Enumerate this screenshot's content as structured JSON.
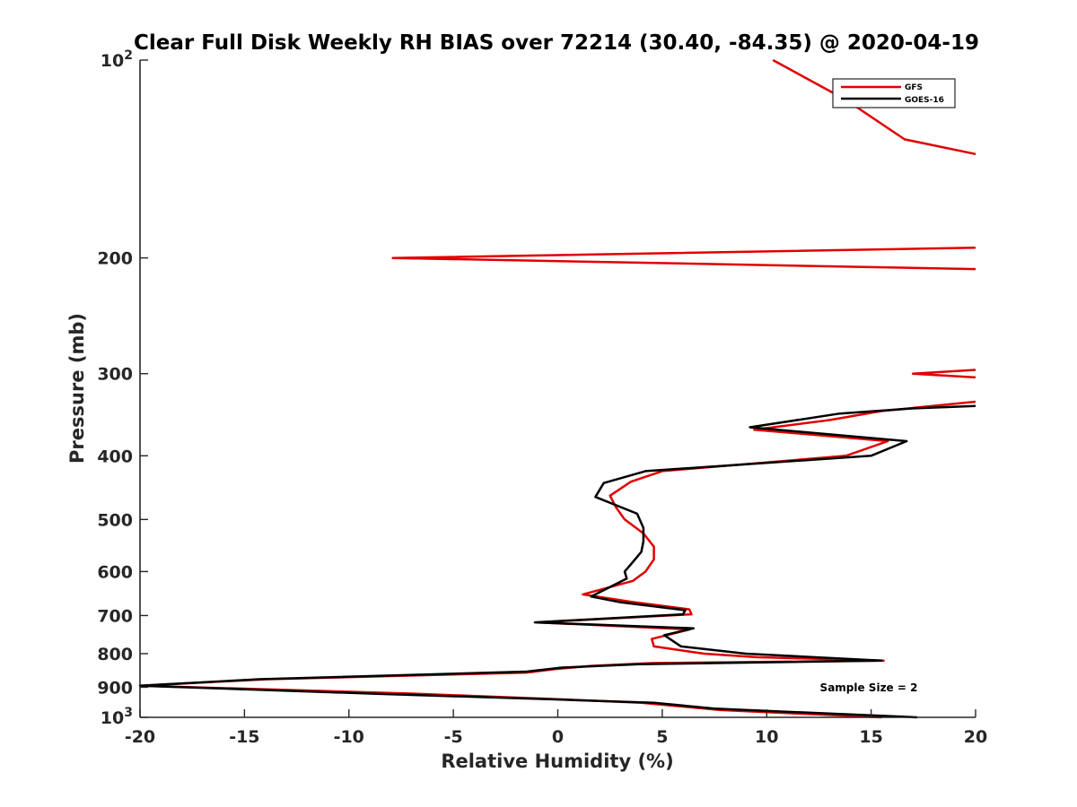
{
  "chart_data": {
    "type": "line",
    "title": "Clear Full Disk Weekly RH BIAS over 72214 (30.40, -84.35) @ 2020-04-19",
    "xlabel": "Relative Humidity (%)",
    "ylabel": "Pressure (mb)",
    "xlim": [
      -20,
      20
    ],
    "ylim": [
      100,
      1000
    ],
    "yscale": "log",
    "y_reversed": true,
    "xticks": [
      -20,
      -15,
      -10,
      -5,
      0,
      5,
      10,
      15,
      20
    ],
    "xtick_labels": [
      "-20",
      "-15",
      "-10",
      "-5",
      "0",
      "5",
      "10",
      "15",
      "20"
    ],
    "yticks": [
      100,
      200,
      300,
      400,
      500,
      600,
      700,
      800,
      900,
      1000
    ],
    "ytick_labels": [
      {
        "base": "10",
        "exp": "2"
      },
      {
        "base": "200"
      },
      {
        "base": "300"
      },
      {
        "base": "400"
      },
      {
        "base": "500"
      },
      {
        "base": "600"
      },
      {
        "base": "700"
      },
      {
        "base": "800"
      },
      {
        "base": "900"
      },
      {
        "base": "10",
        "exp": "3"
      }
    ],
    "legend_position": "top-right",
    "annotation": "Sample Size = 2",
    "series": [
      {
        "name": "GFS",
        "color": "#e00000",
        "segments": [
          [
            [
              10.3,
              100
            ],
            [
              13.8,
              115
            ],
            [
              16.6,
              132
            ],
            [
              20,
              139
            ]
          ],
          [
            [
              20,
              193
            ],
            [
              -7.9,
              200
            ],
            [
              20,
              208
            ]
          ],
          [
            [
              20,
              296
            ],
            [
              17.0,
              300
            ],
            [
              20,
              304
            ]
          ],
          [
            [
              20,
              331
            ],
            [
              15.5,
              342
            ],
            [
              13.0,
              353
            ],
            [
              9.4,
              365
            ],
            [
              15.8,
              380
            ],
            [
              13.8,
              400
            ],
            [
              5.0,
              422
            ],
            [
              3.5,
              438
            ],
            [
              2.5,
              460
            ],
            [
              2.8,
              480
            ],
            [
              3.2,
              500
            ],
            [
              4.1,
              525
            ],
            [
              4.6,
              550
            ],
            [
              4.6,
              575
            ],
            [
              4.2,
              600
            ],
            [
              3.6,
              620
            ],
            [
              1.2,
              650
            ],
            [
              3.5,
              667
            ],
            [
              6.3,
              685
            ],
            [
              6.4,
              697
            ],
            [
              -1.0,
              717
            ],
            [
              6.3,
              735
            ],
            [
              4.5,
              760
            ],
            [
              4.6,
              780
            ],
            [
              7.0,
              800
            ],
            [
              9.5,
              810
            ],
            [
              15.6,
              820
            ],
            [
              4.5,
              827
            ],
            [
              1.6,
              835
            ],
            [
              -0.2,
              845
            ],
            [
              -1.5,
              855
            ],
            [
              -13.9,
              875
            ],
            [
              -20,
              895
            ],
            [
              -7.0,
              920
            ],
            [
              0.5,
              940
            ],
            [
              4.0,
              950
            ],
            [
              7.8,
              975
            ],
            [
              15.5,
              1000
            ]
          ]
        ]
      },
      {
        "name": "GOES-16",
        "color": "#000000",
        "segments": [
          [
            [
              20,
              336
            ],
            [
              16.9,
              339
            ],
            [
              13.5,
              345
            ],
            [
              9.2,
              362
            ],
            [
              16.7,
              380
            ],
            [
              15.0,
              400
            ],
            [
              4.2,
              422
            ],
            [
              2.2,
              440
            ],
            [
              1.8,
              462
            ],
            [
              3.8,
              490
            ],
            [
              4.1,
              515
            ],
            [
              4.1,
              540
            ],
            [
              4.0,
              560
            ],
            [
              3.5,
              585
            ],
            [
              3.2,
              600
            ],
            [
              3.3,
              615
            ],
            [
              1.6,
              655
            ],
            [
              3.0,
              668
            ],
            [
              6.1,
              687
            ],
            [
              6.0,
              697
            ],
            [
              -1.1,
              717
            ],
            [
              6.5,
              732
            ],
            [
              5.1,
              750
            ],
            [
              5.9,
              780
            ],
            [
              9.0,
              800
            ],
            [
              15.5,
              820
            ],
            [
              3.9,
              830
            ],
            [
              0.2,
              840
            ],
            [
              -1.5,
              852
            ],
            [
              -14.3,
              875
            ],
            [
              -20,
              895
            ],
            [
              -9.0,
              920
            ],
            [
              0.2,
              940
            ],
            [
              4.6,
              950
            ],
            [
              7.5,
              970
            ],
            [
              17.2,
              1000
            ]
          ]
        ]
      }
    ]
  }
}
